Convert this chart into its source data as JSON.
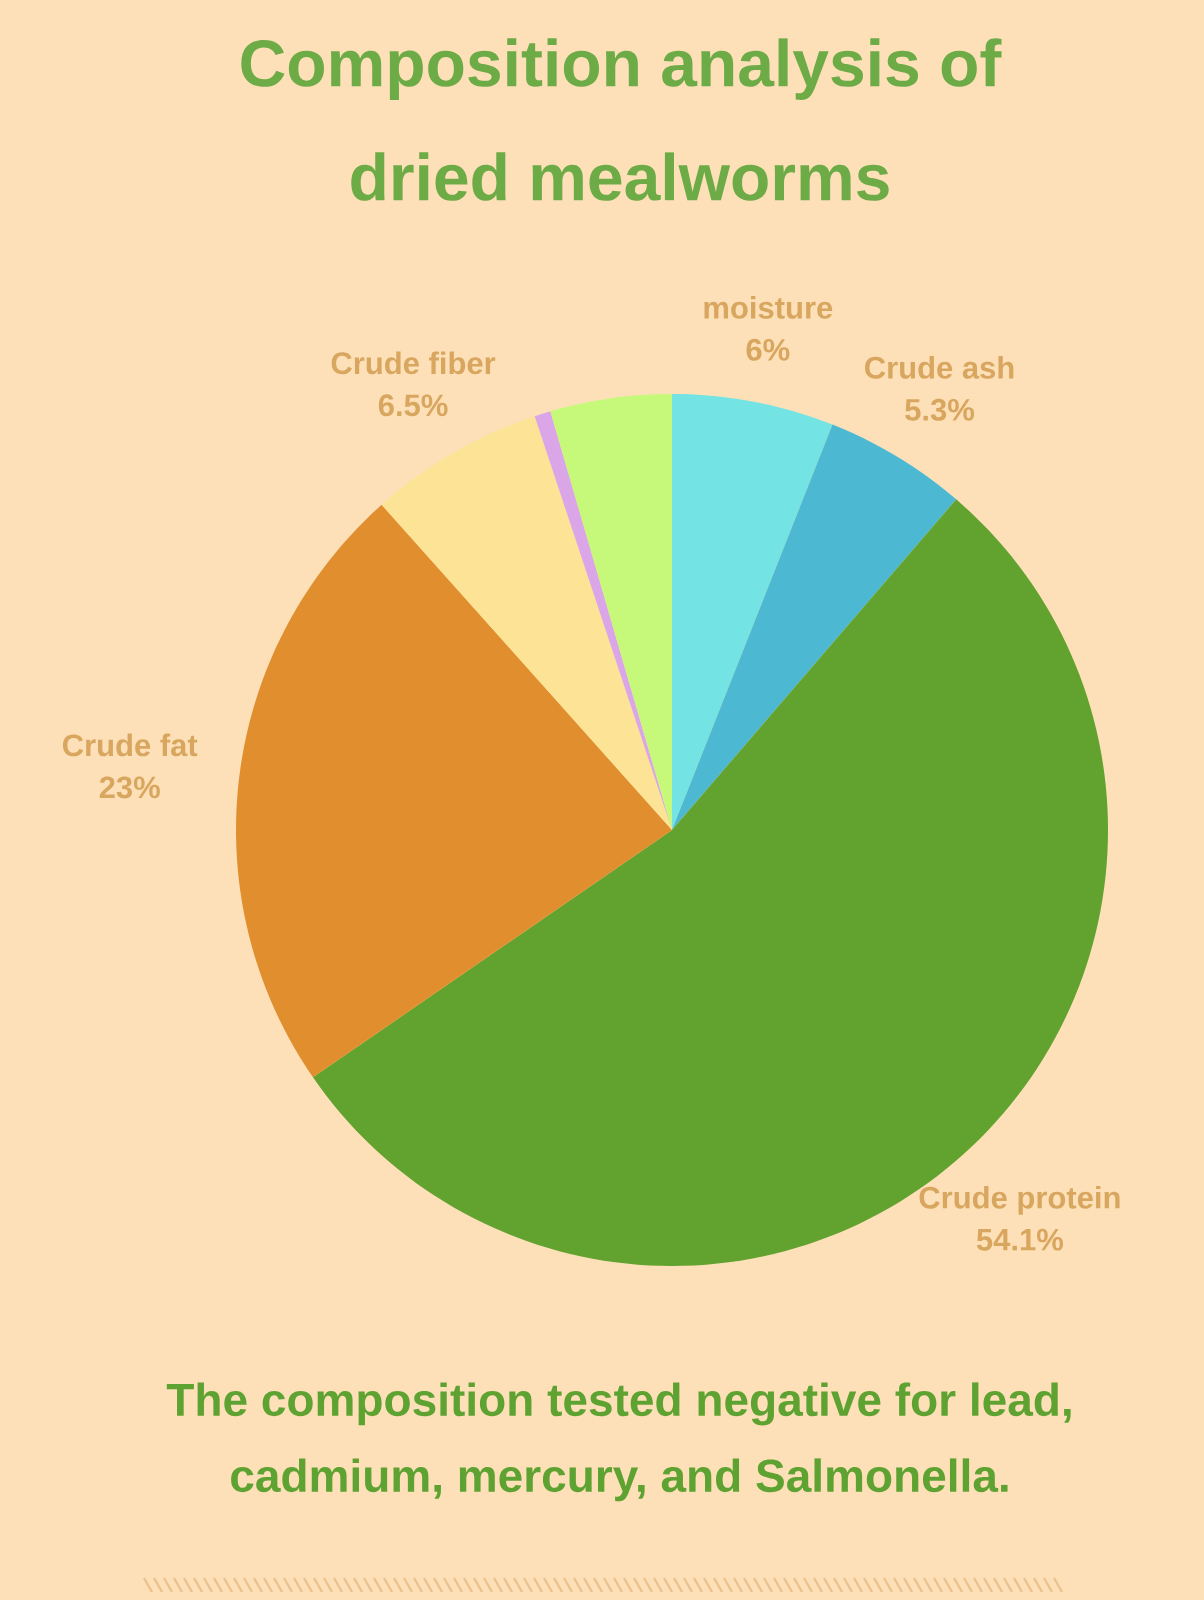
{
  "chart_data": {
    "type": "pie",
    "title": "Composition analysis of dried mealworms",
    "categories": [
      "moisture",
      "Crude ash",
      "Crude protein",
      "Crude fat",
      "Crude fiber",
      null,
      null
    ],
    "values": [
      6,
      5.3,
      54.1,
      23,
      6.5,
      0.6,
      4.5
    ],
    "colors": [
      "#74e3e3",
      "#4db8d1",
      "#62a22f",
      "#e08e2e",
      "#fde395",
      "#dba6e8",
      "#c6f97a"
    ],
    "value_labels": [
      "6%",
      "5.3%",
      "54.1%",
      "23%",
      "6.5%",
      null,
      null
    ],
    "annotations": [
      "The composition tested negative for lead, cadmium, mercury, and Salmonella."
    ]
  }
}
